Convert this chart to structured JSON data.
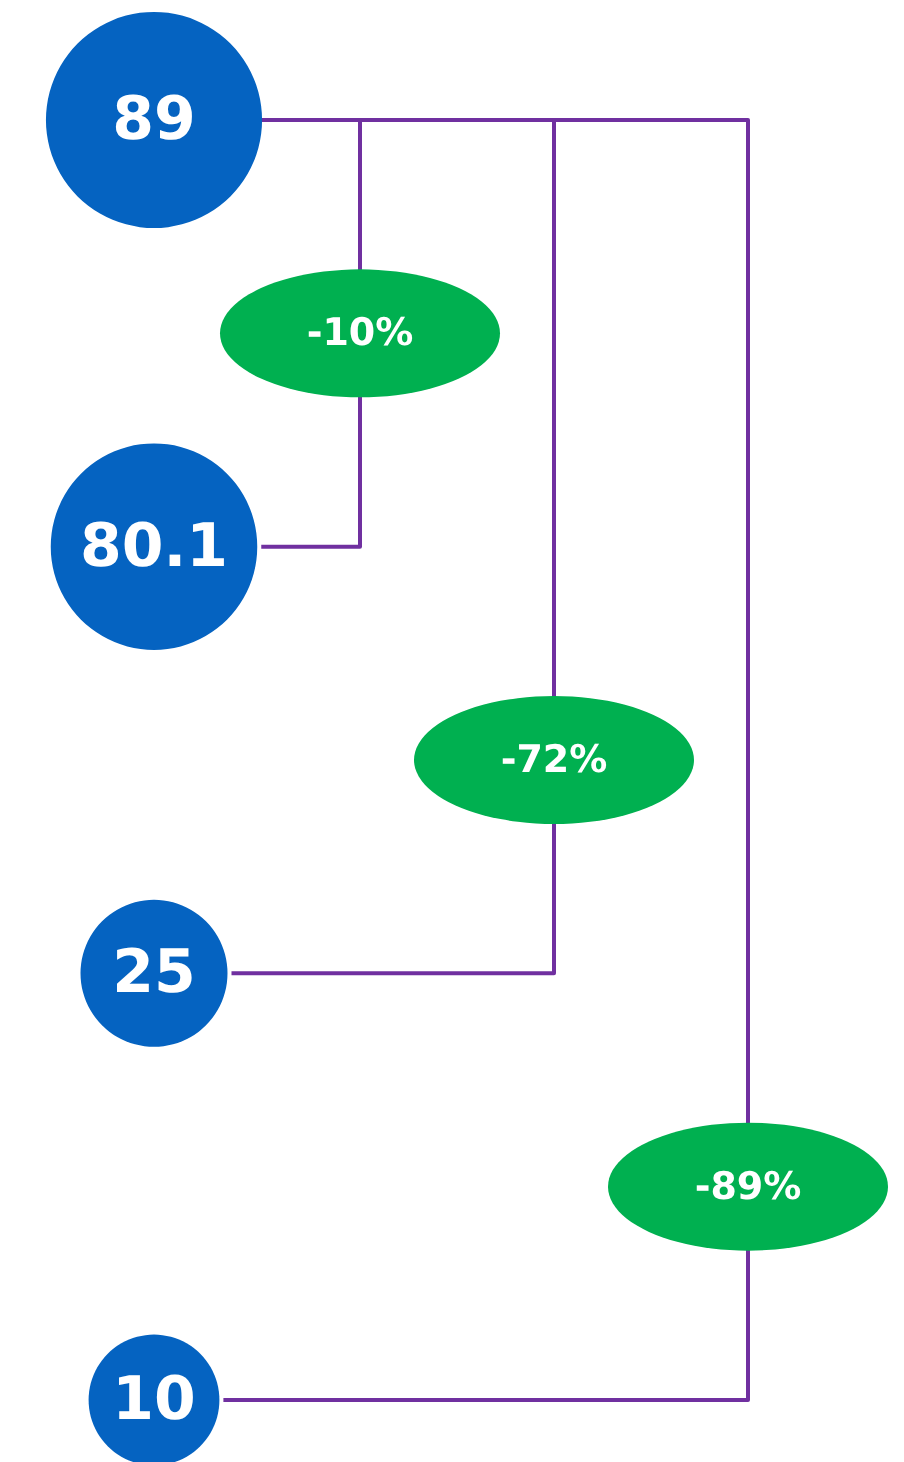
{
  "chart_data": {
    "type": "other",
    "categories": [
      null,
      null,
      null,
      null
    ],
    "values": [
      89,
      80.1,
      25,
      10
    ],
    "color": "#0563c1",
    "data_labels": true,
    "annotations": [
      "-10%",
      "-72%",
      "-89%"
    ]
  }
}
